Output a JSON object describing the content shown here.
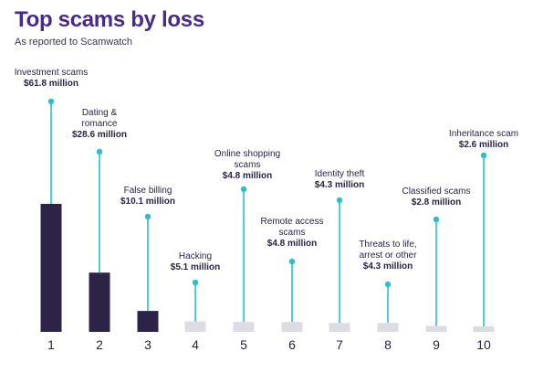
{
  "title": "Top scams by loss",
  "subtitle": "As reported to Scamwatch",
  "colors": {
    "title": "#4a2a88",
    "bar_major": "#2c2347",
    "bar_minor": "#dddce2",
    "stem": "#2bbfcc",
    "text": "#2a2344"
  },
  "chart_data": {
    "type": "bar",
    "title": "Top scams by loss",
    "subtitle": "As reported to Scamwatch",
    "categories": [
      "1",
      "2",
      "3",
      "4",
      "5",
      "6",
      "7",
      "8",
      "9",
      "10"
    ],
    "category_labels": [
      [
        "Investment scams"
      ],
      [
        "Dating &",
        "romance"
      ],
      [
        "False billing"
      ],
      [
        "Hacking"
      ],
      [
        "Online shopping",
        "scams"
      ],
      [
        "Remote access",
        "scams"
      ],
      [
        "Identity theft"
      ],
      [
        "Threats to life,",
        "arrest or other"
      ],
      [
        "Classified scams"
      ],
      [
        "Inheritance scam"
      ]
    ],
    "value_labels": [
      "$61.8 million",
      "$28.6 million",
      "$10.1 million",
      "$5.1 million",
      "$4.8 million",
      "$4.8 million",
      "$4.3 million",
      "$4.3 million",
      "$2.8 million",
      "$2.6 million"
    ],
    "values": [
      61.8,
      28.6,
      10.1,
      5.1,
      4.8,
      4.8,
      4.3,
      4.3,
      2.8,
      2.6
    ],
    "unit": "million",
    "ylim": [
      0,
      61.8
    ],
    "grid": false,
    "legend": "none"
  }
}
